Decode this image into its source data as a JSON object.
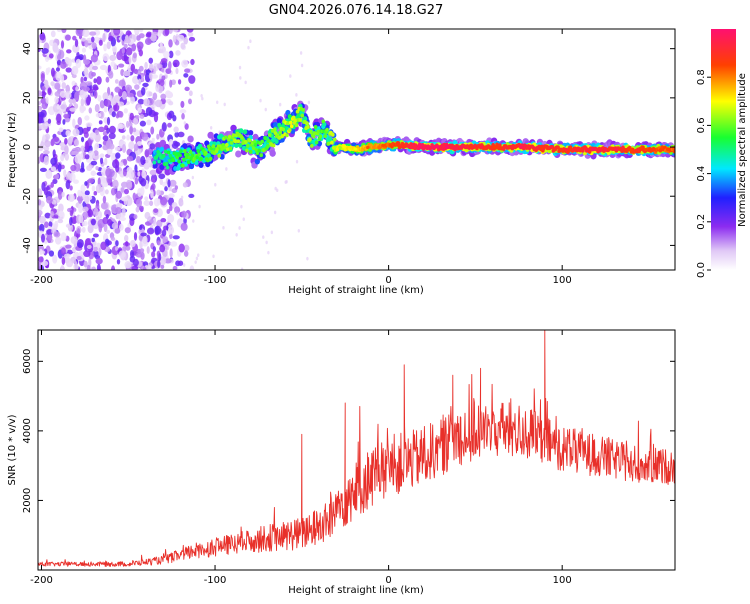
{
  "title": "GN04.2026.076.14.18.G27",
  "chart_data": [
    {
      "type": "heatmap",
      "xlabel": "Height of straight line (km)",
      "ylabel": "Frequency (Hz)",
      "xlim": [
        -202,
        165
      ],
      "ylim": [
        -50,
        48
      ],
      "x_ticks": [
        {
          "value": -200,
          "label": "-200"
        },
        {
          "value": -100,
          "label": "-100"
        },
        {
          "value": 0,
          "label": "0"
        },
        {
          "value": 100,
          "label": "100"
        }
      ],
      "y_ticks": [
        {
          "value": -40,
          "label": "-40"
        },
        {
          "value": -20,
          "label": "-20"
        },
        {
          "value": 0,
          "label": "0"
        },
        {
          "value": 20,
          "label": "20"
        },
        {
          "value": 40,
          "label": "40"
        }
      ],
      "ridge": [
        {
          "x": -135,
          "freq": -4,
          "amp": 0.35
        },
        {
          "x": -125,
          "freq": -5,
          "amp": 0.4
        },
        {
          "x": -115,
          "freq": -4,
          "amp": 0.45
        },
        {
          "x": -105,
          "freq": -3,
          "amp": 0.45
        },
        {
          "x": -95,
          "freq": 1,
          "amp": 0.5
        },
        {
          "x": -85,
          "freq": 3,
          "amp": 0.5
        },
        {
          "x": -75,
          "freq": -1,
          "amp": 0.45
        },
        {
          "x": -65,
          "freq": 5,
          "amp": 0.5
        },
        {
          "x": -55,
          "freq": 10,
          "amp": 0.55
        },
        {
          "x": -50,
          "freq": 14,
          "amp": 0.5
        },
        {
          "x": -45,
          "freq": 3,
          "amp": 0.5
        },
        {
          "x": -38,
          "freq": 7,
          "amp": 0.45
        },
        {
          "x": -30,
          "freq": 0,
          "amp": 0.55
        },
        {
          "x": -20,
          "freq": -1,
          "amp": 0.6
        },
        {
          "x": -10,
          "freq": 0,
          "amp": 0.65
        },
        {
          "x": 0,
          "freq": 1,
          "amp": 0.7
        },
        {
          "x": 20,
          "freq": 0,
          "amp": 0.85
        },
        {
          "x": 40,
          "freq": 0,
          "amp": 0.8
        },
        {
          "x": 60,
          "freq": 0,
          "amp": 0.75
        },
        {
          "x": 80,
          "freq": 0,
          "amp": 0.8
        },
        {
          "x": 100,
          "freq": -1,
          "amp": 0.75
        },
        {
          "x": 120,
          "freq": -1,
          "amp": 0.8
        },
        {
          "x": 140,
          "freq": -1,
          "amp": 0.75
        },
        {
          "x": 160,
          "freq": -1,
          "amp": 0.7
        }
      ],
      "noise_region": {
        "x_range": [
          -202,
          -125
        ],
        "amp_range": [
          0.0,
          0.2
        ]
      }
    },
    {
      "type": "line",
      "xlabel": "Height of straight line (km)",
      "ylabel": "SNR (10 * v/v)",
      "xlim": [
        -202,
        165
      ],
      "ylim": [
        0,
        6900
      ],
      "color": "#e8302a",
      "x_ticks": [
        {
          "value": -200,
          "label": "-200"
        },
        {
          "value": -100,
          "label": "-100"
        },
        {
          "value": 0,
          "label": "0"
        },
        {
          "value": 100,
          "label": "100"
        }
      ],
      "y_ticks": [
        {
          "value": 2000,
          "label": "2000"
        },
        {
          "value": 4000,
          "label": "4000"
        },
        {
          "value": 6000,
          "label": "6000"
        }
      ],
      "envelope": [
        {
          "x": -202,
          "base": 150,
          "noise": 100
        },
        {
          "x": -150,
          "base": 150,
          "noise": 120
        },
        {
          "x": -130,
          "base": 250,
          "noise": 200
        },
        {
          "x": -110,
          "base": 500,
          "noise": 400
        },
        {
          "x": -90,
          "base": 650,
          "noise": 500
        },
        {
          "x": -70,
          "base": 800,
          "noise": 650
        },
        {
          "x": -50,
          "base": 900,
          "noise": 800
        },
        {
          "x": -35,
          "base": 1200,
          "noise": 1000
        },
        {
          "x": -25,
          "base": 1800,
          "noise": 1400
        },
        {
          "x": -10,
          "base": 2400,
          "noise": 1500
        },
        {
          "x": 0,
          "base": 2700,
          "noise": 1500
        },
        {
          "x": 20,
          "base": 3000,
          "noise": 1400
        },
        {
          "x": 40,
          "base": 3600,
          "noise": 1500
        },
        {
          "x": 60,
          "base": 3800,
          "noise": 1400
        },
        {
          "x": 80,
          "base": 3700,
          "noise": 1300
        },
        {
          "x": 100,
          "base": 3300,
          "noise": 1100
        },
        {
          "x": 120,
          "base": 3100,
          "noise": 1000
        },
        {
          "x": 140,
          "base": 2900,
          "noise": 900
        },
        {
          "x": 165,
          "base": 2800,
          "noise": 850
        }
      ],
      "peaks": [
        {
          "x": 9,
          "value": 5900
        },
        {
          "x": 37,
          "value": 5600
        },
        {
          "x": 53,
          "value": 5800
        },
        {
          "x": 90,
          "value": 6900
        },
        {
          "x": -50,
          "value": 3900
        },
        {
          "x": -25,
          "value": 4800
        }
      ]
    }
  ],
  "colorbar": {
    "label": "Normalized spectral amplitude",
    "range": [
      0,
      1
    ],
    "ticks": [
      {
        "value": 0.0,
        "label": "0.0"
      },
      {
        "value": 0.2,
        "label": "0.2"
      },
      {
        "value": 0.4,
        "label": "0.4"
      },
      {
        "value": 0.6,
        "label": "0.6"
      },
      {
        "value": 0.8,
        "label": "0.8"
      }
    ],
    "stops": [
      {
        "v": 0.0,
        "color": "#ffffff"
      },
      {
        "v": 0.08,
        "color": "#e0c8f6"
      },
      {
        "v": 0.18,
        "color": "#8c2cf0"
      },
      {
        "v": 0.3,
        "color": "#2020ff"
      },
      {
        "v": 0.42,
        "color": "#00e8ff"
      },
      {
        "v": 0.55,
        "color": "#18ff30"
      },
      {
        "v": 0.7,
        "color": "#ffff00"
      },
      {
        "v": 0.85,
        "color": "#ff4000"
      },
      {
        "v": 1.0,
        "color": "#ff1070"
      }
    ]
  }
}
